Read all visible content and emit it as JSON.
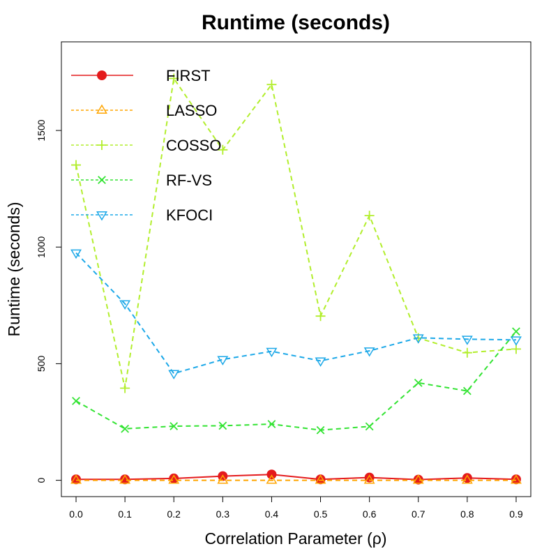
{
  "chart_data": {
    "type": "line",
    "title": "Runtime (seconds)",
    "xlabel": "Correlation Parameter (ρ)",
    "ylabel": "Runtime (seconds)",
    "x": [
      0.0,
      0.1,
      0.2,
      0.3,
      0.4,
      0.5,
      0.6,
      0.7,
      0.8,
      0.9
    ],
    "x_tick_labels": [
      "0.0",
      "0.1",
      "0.2",
      "0.3",
      "0.4",
      "0.5",
      "0.6",
      "0.7",
      "0.8",
      "0.9"
    ],
    "y_ticks": [
      0,
      500,
      1000,
      1500
    ],
    "y_tick_labels": [
      "0",
      "500",
      "1000",
      "1500"
    ],
    "xlim": [
      -0.03,
      0.93
    ],
    "ylim": [
      -70,
      1880
    ],
    "grid": false,
    "legend_position": "top-left",
    "series": [
      {
        "name": "FIRST",
        "color": "#e41a1c",
        "line_style": "solid",
        "marker": "filled-circle",
        "values": [
          4,
          4,
          8,
          18,
          25,
          4,
          12,
          3,
          10,
          4
        ]
      },
      {
        "name": "LASSO",
        "color": "#ffa500",
        "line_style": "dashed",
        "marker": "triangle-up",
        "values": [
          0,
          0,
          0,
          0,
          0,
          0,
          0,
          0,
          0,
          0
        ]
      },
      {
        "name": "COSSO",
        "color": "#b2ee2c",
        "line_style": "dashed",
        "marker": "plus",
        "values": [
          1352,
          395,
          1723,
          1417,
          1697,
          704,
          1135,
          610,
          547,
          563
        ]
      },
      {
        "name": "RF-VS",
        "color": "#32e332",
        "line_style": "dashed",
        "marker": "cross",
        "values": [
          340,
          221,
          232,
          234,
          241,
          215,
          231,
          418,
          383,
          638
        ]
      },
      {
        "name": "KFOCI",
        "color": "#1ca8e8",
        "line_style": "dashed",
        "marker": "triangle-down",
        "values": [
          975,
          757,
          458,
          518,
          553,
          512,
          555,
          611,
          605,
          602
        ]
      }
    ]
  }
}
